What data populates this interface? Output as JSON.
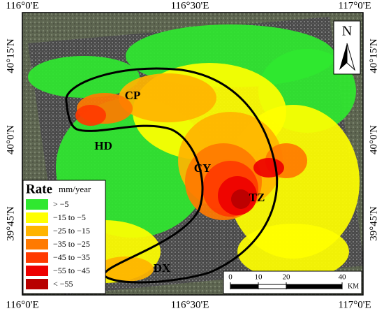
{
  "map": {
    "x_labels": [
      "116°0'E",
      "116°30'E",
      "117°0'E"
    ],
    "y_labels": [
      "40°15'N",
      "40°0'N",
      "39°45'N"
    ],
    "north": "N",
    "legend": {
      "title": "Rate",
      "unit": "mm/year",
      "items": [
        {
          "label": "> −5",
          "color": "#2fe82f"
        },
        {
          "label": "−15 to −5",
          "color": "#ffff00"
        },
        {
          "label": "−25 to −15",
          "color": "#ffb400"
        },
        {
          "label": "−35 to −25",
          "color": "#ff7a00"
        },
        {
          "label": "−45 to −35",
          "color": "#ff3a00"
        },
        {
          "label": "−55 to −45",
          "color": "#ee0000"
        },
        {
          "label": "< −55",
          "color": "#b80000"
        }
      ]
    },
    "regions": [
      "CP",
      "HD",
      "CY",
      "TZ",
      "DX"
    ],
    "scale_bar": {
      "ticks": [
        0,
        10,
        20,
        40
      ],
      "unit": "KM"
    }
  }
}
